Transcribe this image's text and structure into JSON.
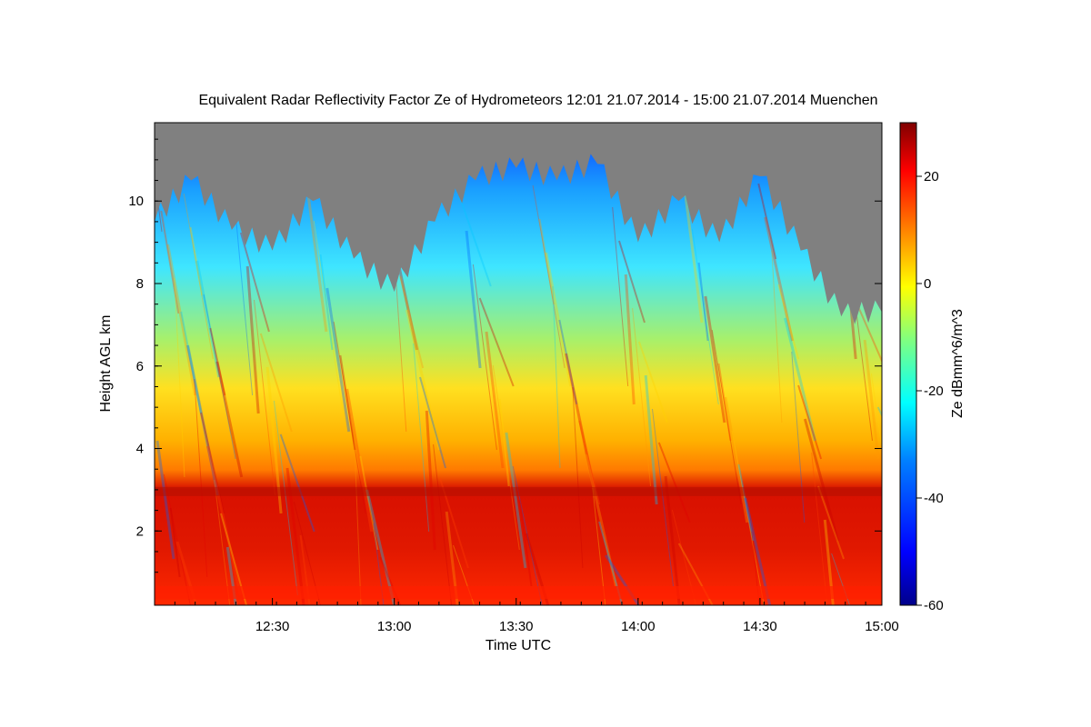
{
  "chart_data": {
    "type": "heatmap",
    "title": "Equivalent Radar Reflectivity Factor Ze of Hydrometeors   12:01 21.07.2014 - 15:00 21.07.2014 Muenchen",
    "xlabel": "Time UTC",
    "ylabel": "Height AGL km",
    "colorbar_label": "Ze dBmm^6/m^3",
    "x_range": [
      "12:01",
      "15:00"
    ],
    "x_ticks": [
      "12:30",
      "13:00",
      "13:30",
      "14:00",
      "14:30",
      "15:00"
    ],
    "y_range": [
      0.2,
      11.9
    ],
    "y_ticks": [
      "2",
      "4",
      "6",
      "8",
      "10"
    ],
    "z_range": [
      -60,
      30
    ],
    "colorbar_ticks": [
      "20",
      "0",
      "-20",
      "-40",
      "-60"
    ],
    "colormap": [
      "#00008a",
      "#0000ff",
      "#0080ff",
      "#00ffff",
      "#80ff80",
      "#ffff00",
      "#ff8000",
      "#ff0000",
      "#800000"
    ],
    "background_color": "#808080",
    "echo_top_profile": {
      "time": [
        "12:01",
        "12:10",
        "12:20",
        "12:30",
        "12:40",
        "12:50",
        "13:00",
        "13:10",
        "13:20",
        "13:30",
        "13:40",
        "13:50",
        "14:00",
        "14:10",
        "14:20",
        "14:30",
        "14:40",
        "14:50",
        "15:00"
      ],
      "height_km": [
        9.5,
        10.5,
        9.3,
        8.8,
        10.0,
        8.6,
        7.8,
        9.5,
        10.5,
        10.8,
        10.5,
        10.9,
        9.0,
        10.0,
        9.0,
        10.6,
        8.8,
        7.2,
        7.3
      ]
    },
    "melting_layer_height_km": 3.0,
    "notes": ""
  }
}
